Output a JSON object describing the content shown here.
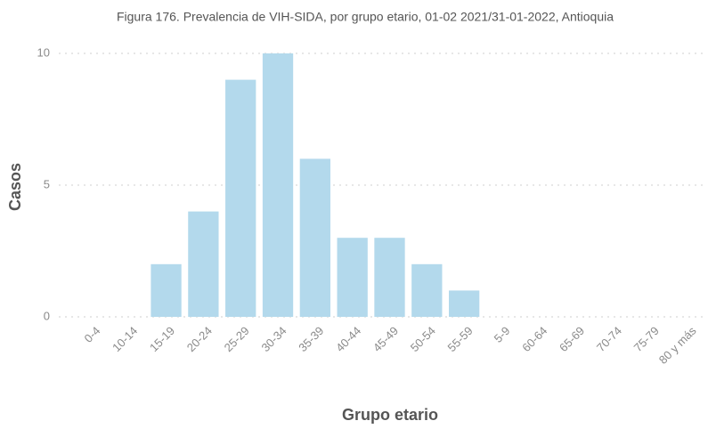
{
  "chart_data": {
    "type": "bar",
    "title": "Figura 176.  Prevalencia de VIH-SIDA, por grupo etario, 01-02 2021/31-01-2022, Antioquia",
    "x_label": "Grupo etario",
    "y_label": "Casos",
    "categories": [
      "0-4",
      "10-14",
      "15-19",
      "20-24",
      "25-29",
      "30-34",
      "35-39",
      "40-44",
      "45-49",
      "50-54",
      "55-59",
      "5-9",
      "60-64",
      "65-69",
      "70-74",
      "75-79",
      "80 y más"
    ],
    "values": [
      0,
      0,
      2,
      4,
      9,
      10,
      6,
      3,
      3,
      2,
      1,
      0,
      0,
      0,
      0,
      0,
      0
    ],
    "color": "#b3d9ec",
    "ylim": [
      0,
      10
    ],
    "yticks": [
      0,
      5,
      10
    ],
    "grid": true
  }
}
